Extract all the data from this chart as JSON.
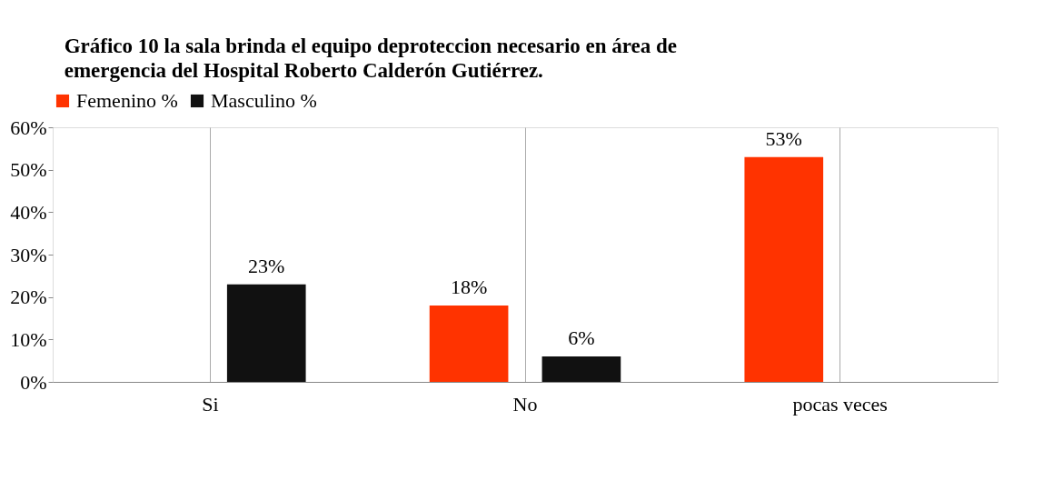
{
  "chart_data": {
    "type": "bar",
    "title": "Gráfico 10 la sala brinda el equipo deproteccion necesario en área de emergencia del Hospital Roberto Calderón Gutiérrez.",
    "categories": [
      "Si",
      "No",
      "pocas veces"
    ],
    "series": [
      {
        "name": "Femenino %",
        "color": "#ff3300",
        "values": [
          null,
          18,
          53
        ],
        "value_labels": [
          null,
          "18%",
          "53%"
        ]
      },
      {
        "name": "Masculino  %",
        "color": "#111111",
        "values": [
          23,
          6,
          null
        ],
        "value_labels": [
          "23%",
          "6%",
          null
        ]
      }
    ],
    "ylim": [
      0,
      60
    ],
    "yticks": [
      {
        "value": 0,
        "label": "0%"
      },
      {
        "value": 10,
        "label": "10%"
      },
      {
        "value": 20,
        "label": "20%"
      },
      {
        "value": 30,
        "label": "30%"
      },
      {
        "value": 40,
        "label": "40%"
      },
      {
        "value": 50,
        "label": "50%"
      },
      {
        "value": 60,
        "label": "60%"
      }
    ],
    "grid": "x",
    "legend": "top"
  }
}
